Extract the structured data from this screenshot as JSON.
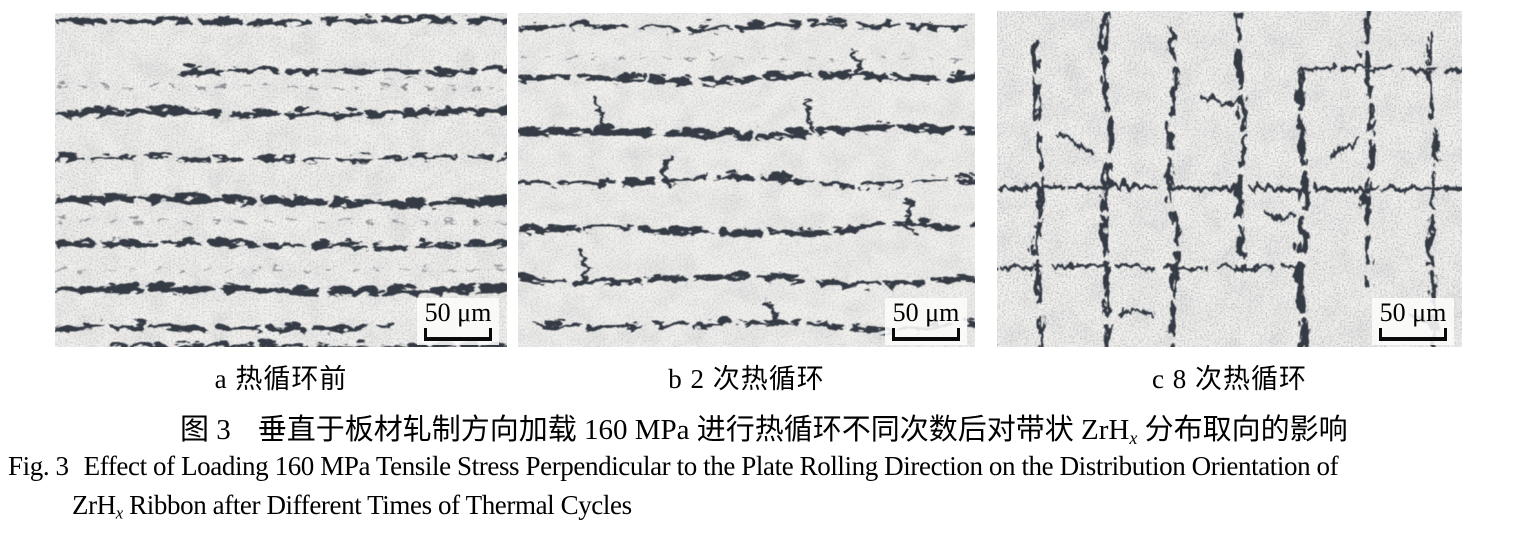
{
  "figure": {
    "panels": [
      {
        "id": "a",
        "caption": "a 热循环前",
        "scale_label": "50 μm",
        "alt": "micrograph of banded ZrHx hydride ribbons aligned horizontally before thermal cycling"
      },
      {
        "id": "b",
        "caption": "b 2 次热循环",
        "scale_label": "50 μm",
        "alt": "micrograph of wavy, partially broken horizontal ZrHx hydride ribbons after 2 thermal cycles"
      },
      {
        "id": "c",
        "caption": "c 8 次热循环",
        "scale_label": "50 μm",
        "alt": "micrograph of reticular ZrHx hydrides reoriented mostly vertically after 8 thermal cycles"
      }
    ]
  },
  "captions": {
    "cn": {
      "fig_label": "图 3",
      "text_before": "垂直于板材轧制方向加载 160 MPa 进行热循环不同次数后对带状 ZrH",
      "subscript": "x",
      "text_after": " 分布取向的影响"
    },
    "en": {
      "fig_label": "Fig. 3",
      "line1": "Effect of Loading 160 MPa Tensile Stress Perpendicular to the Plate Rolling Direction on the Distribution Orientation of",
      "line2_pre": "ZrH",
      "subscript": "x",
      "line2_rest": " Ribbon after Different Times of Thermal Cycles"
    }
  },
  "colors": {
    "ink": "#000000",
    "ribbon_dark": "#353b45",
    "micrograph_bg": "#f3f2ef",
    "scale_box_bg": "#fcfcfa"
  }
}
